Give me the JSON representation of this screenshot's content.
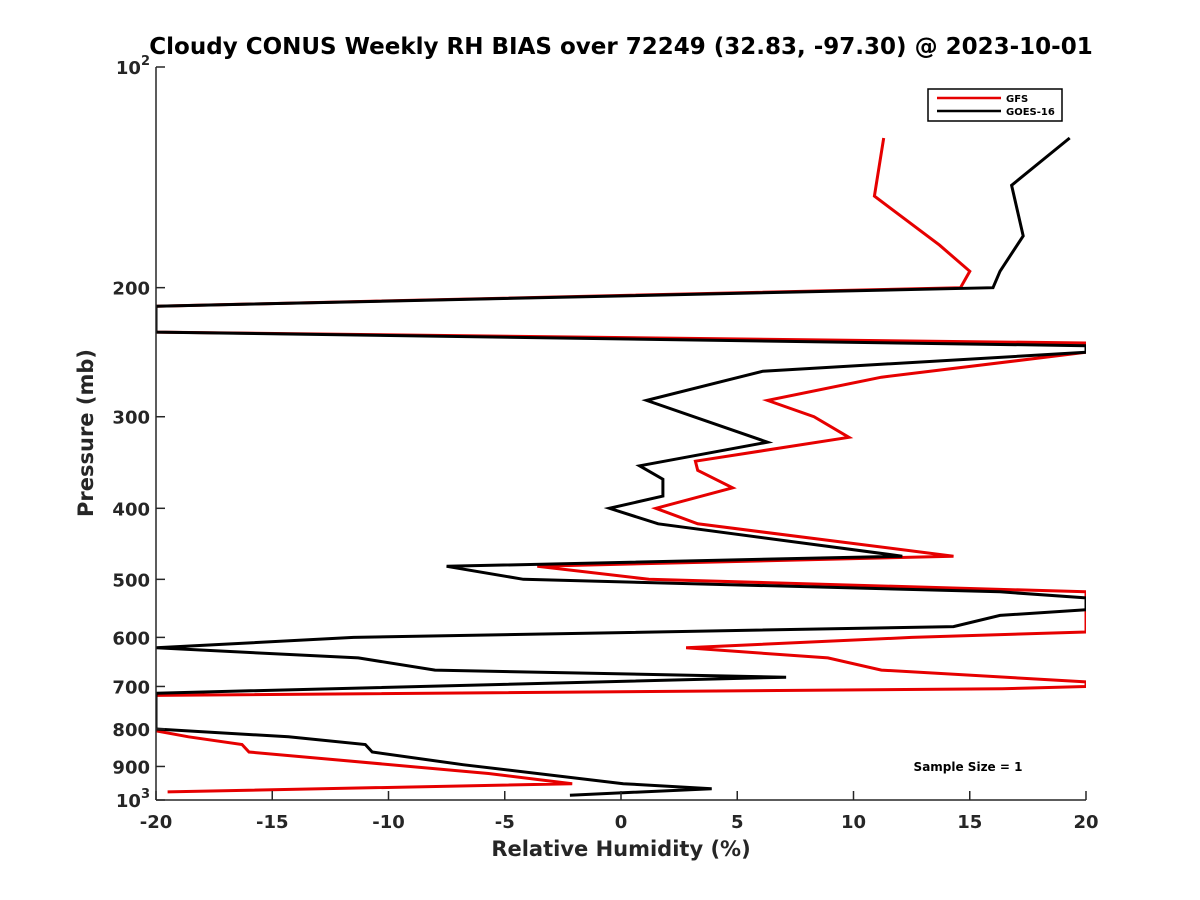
{
  "chart_data": {
    "type": "line",
    "title": "Cloudy CONUS Weekly RH BIAS over 72249 (32.83, -97.30) @ 2023-10-01",
    "xlabel": "Relative Humidity (%)",
    "ylabel": "Pressure (mb)",
    "xlim": [
      -20,
      20
    ],
    "ylim": [
      100,
      1000
    ],
    "y_scale": "log",
    "y_reversed": true,
    "grid": false,
    "legend_position": "top-right",
    "x_ticks": [
      -20,
      -15,
      -10,
      -5,
      0,
      5,
      10,
      15,
      20
    ],
    "x_tick_labels": [
      "-20",
      "-15",
      "-10",
      "-5",
      "0",
      "5",
      "10",
      "15",
      "20"
    ],
    "y_ticks": [
      100,
      200,
      300,
      400,
      500,
      600,
      700,
      800,
      900,
      1000
    ],
    "y_tick_labels": [
      {
        "base": "10",
        "exp": "2"
      },
      {
        "base": "200",
        "exp": ""
      },
      {
        "base": "300",
        "exp": ""
      },
      {
        "base": "400",
        "exp": ""
      },
      {
        "base": "500",
        "exp": ""
      },
      {
        "base": "600",
        "exp": ""
      },
      {
        "base": "700",
        "exp": ""
      },
      {
        "base": "800",
        "exp": ""
      },
      {
        "base": "900",
        "exp": ""
      },
      {
        "base": "10",
        "exp": "3"
      }
    ],
    "annotation": "Sample Size = 1",
    "series": [
      {
        "name": "GFS",
        "color": "#e60000",
        "points": [
          [
            11.3,
            125
          ],
          [
            10.9,
            150
          ],
          [
            13.7,
            175
          ],
          [
            15.0,
            190
          ],
          [
            14.6,
            200
          ],
          [
            -20.0,
            212
          ],
          [
            -20.0,
            230
          ],
          [
            20.0,
            238
          ],
          [
            20.0,
            245
          ],
          [
            11.2,
            265
          ],
          [
            6.3,
            285
          ],
          [
            8.3,
            300
          ],
          [
            9.8,
            320
          ],
          [
            3.2,
            345
          ],
          [
            3.3,
            355
          ],
          [
            4.8,
            375
          ],
          [
            1.5,
            400
          ],
          [
            3.3,
            420
          ],
          [
            14.3,
            465
          ],
          [
            -3.6,
            480
          ],
          [
            1.2,
            500
          ],
          [
            20.0,
            520
          ],
          [
            20.0,
            590
          ],
          [
            12.5,
            600
          ],
          [
            2.8,
            620
          ],
          [
            8.9,
            640
          ],
          [
            11.2,
            665
          ],
          [
            20.0,
            690
          ],
          [
            20.0,
            700
          ],
          [
            16.4,
            705
          ],
          [
            -20.0,
            720
          ],
          [
            -20.0,
            805
          ],
          [
            -18.6,
            820
          ],
          [
            -16.3,
            840
          ],
          [
            -16.0,
            860
          ],
          [
            -5.7,
            920
          ],
          [
            -2.1,
            950
          ],
          [
            -19.5,
            975
          ]
        ]
      },
      {
        "name": "GOES-16",
        "color": "#000000",
        "points": [
          [
            19.3,
            125
          ],
          [
            16.8,
            145
          ],
          [
            17.3,
            170
          ],
          [
            16.3,
            190
          ],
          [
            16.0,
            200
          ],
          [
            -20.0,
            212
          ],
          [
            -20.0,
            230
          ],
          [
            20.0,
            240
          ],
          [
            20.0,
            245
          ],
          [
            6.1,
            260
          ],
          [
            1.1,
            285
          ],
          [
            6.3,
            325
          ],
          [
            0.8,
            350
          ],
          [
            1.8,
            365
          ],
          [
            1.8,
            385
          ],
          [
            -0.5,
            400
          ],
          [
            1.6,
            420
          ],
          [
            12.1,
            465
          ],
          [
            -7.5,
            480
          ],
          [
            -4.2,
            500
          ],
          [
            16.3,
            520
          ],
          [
            20.0,
            530
          ],
          [
            20.0,
            550
          ],
          [
            16.3,
            560
          ],
          [
            14.3,
            580
          ],
          [
            -11.5,
            600
          ],
          [
            -20.0,
            620
          ],
          [
            -11.3,
            640
          ],
          [
            -8.0,
            665
          ],
          [
            7.1,
            680
          ],
          [
            -20.0,
            715
          ],
          [
            -20.0,
            800
          ],
          [
            -14.3,
            820
          ],
          [
            -11.0,
            840
          ],
          [
            -10.7,
            860
          ],
          [
            -6.8,
            895
          ],
          [
            0.1,
            950
          ],
          [
            3.9,
            965
          ],
          [
            -2.2,
            985
          ]
        ]
      }
    ]
  }
}
